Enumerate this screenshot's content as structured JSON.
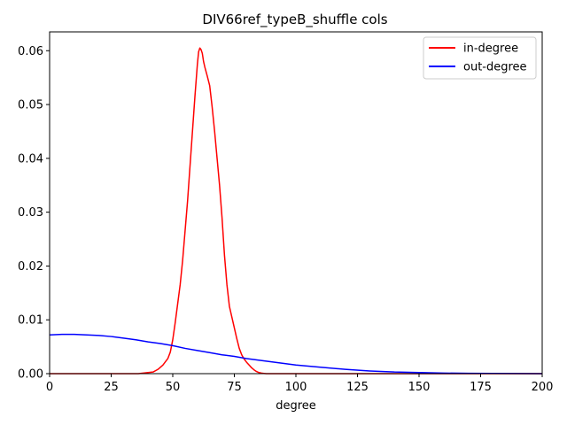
{
  "chart_data": {
    "type": "line",
    "title": "DIV66ref_typeB_shuffle cols",
    "xlabel": "degree",
    "ylabel": "",
    "xlim": [
      0,
      200
    ],
    "ylim": [
      0,
      0.0635
    ],
    "x_ticks": [
      0,
      25,
      50,
      75,
      100,
      125,
      150,
      175,
      200
    ],
    "x_tick_labels": [
      "0",
      "25",
      "50",
      "75",
      "100",
      "125",
      "150",
      "175",
      "200"
    ],
    "y_ticks": [
      0.0,
      0.01,
      0.02,
      0.03,
      0.04,
      0.05,
      0.06
    ],
    "y_tick_labels": [
      "0.00",
      "0.01",
      "0.02",
      "0.03",
      "0.04",
      "0.05",
      "0.06"
    ],
    "grid": false,
    "legend": {
      "position": "top-right"
    },
    "series": [
      {
        "name": "in-degree",
        "color": "#ff0000",
        "x": [
          0,
          20,
          36,
          38,
          40,
          42,
          44,
          46,
          48,
          49,
          50,
          51,
          52,
          53,
          54,
          55,
          56,
          57,
          58,
          59,
          60,
          60.5,
          61,
          61.5,
          62,
          62.5,
          63,
          64,
          65,
          66,
          67,
          68,
          69,
          70,
          71,
          72,
          73,
          74,
          75,
          76,
          77,
          78,
          79,
          80,
          81,
          82,
          83,
          84,
          85,
          86,
          87,
          88,
          90,
          95,
          100,
          150,
          200
        ],
        "y": [
          0,
          0,
          0,
          0.0001,
          0.0002,
          0.0003,
          0.0008,
          0.0016,
          0.0028,
          0.004,
          0.0063,
          0.0095,
          0.013,
          0.0165,
          0.021,
          0.0265,
          0.032,
          0.0385,
          0.045,
          0.0515,
          0.0575,
          0.0598,
          0.0605,
          0.0602,
          0.0595,
          0.058,
          0.057,
          0.0553,
          0.0535,
          0.0495,
          0.045,
          0.04,
          0.035,
          0.029,
          0.022,
          0.0165,
          0.0125,
          0.0105,
          0.0085,
          0.0065,
          0.0047,
          0.0035,
          0.0027,
          0.0021,
          0.0016,
          0.0011,
          0.0007,
          0.0004,
          0.0002,
          0.0001,
          5e-05,
          0,
          0,
          0,
          0,
          0,
          0
        ]
      },
      {
        "name": "out-degree",
        "color": "#0000ff",
        "x": [
          0,
          5,
          10,
          15,
          20,
          25,
          30,
          35,
          40,
          45,
          50,
          55,
          60,
          65,
          70,
          75,
          80,
          90,
          100,
          110,
          120,
          130,
          140,
          150,
          160,
          170,
          180,
          190,
          200
        ],
        "y": [
          0.0072,
          0.0073,
          0.0073,
          0.0072,
          0.0071,
          0.0069,
          0.0066,
          0.0063,
          0.0059,
          0.0056,
          0.0052,
          0.0047,
          0.0043,
          0.0039,
          0.0035,
          0.0032,
          0.0028,
          0.0022,
          0.0016,
          0.0012,
          0.0008,
          0.0005,
          0.0003,
          0.0002,
          0.0001,
          7e-05,
          4e-05,
          2e-05,
          1e-05
        ]
      }
    ]
  }
}
